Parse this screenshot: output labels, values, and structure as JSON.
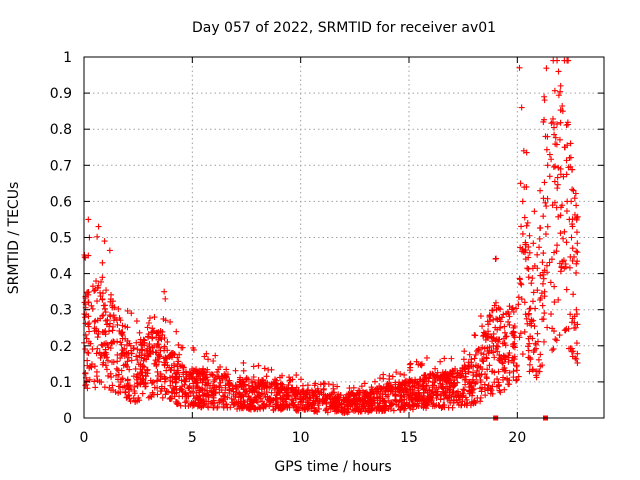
{
  "chart_data": {
    "type": "scatter",
    "title": "Day 057 of 2022, SRMTID for receiver av01",
    "xlabel": "GPS time / hours",
    "ylabel": "SRMTID / TECUs",
    "xlim": [
      0,
      24
    ],
    "ylim": [
      0,
      1
    ],
    "x_ticks": [
      "0",
      "5",
      "10",
      "15",
      "20"
    ],
    "x_tick_values": [
      0,
      5,
      10,
      15,
      20
    ],
    "y_ticks": [
      "0",
      "0.1",
      "0.2",
      "0.3",
      "0.4",
      "0.5",
      "0.6",
      "0.7",
      "0.8",
      "0.9",
      "1"
    ],
    "y_tick_values": [
      0,
      0.1,
      0.2,
      0.3,
      0.4,
      0.5,
      0.6,
      0.7,
      0.8,
      0.9,
      1
    ],
    "grid": true,
    "series_color": "#ff0000",
    "marker": "plus",
    "point_density_per_hour": 105,
    "trend_anchors": [
      {
        "x": 0.0,
        "y": 0.2
      },
      {
        "x": 0.5,
        "y": 0.24
      },
      {
        "x": 1.0,
        "y": 0.22
      },
      {
        "x": 1.5,
        "y": 0.19
      },
      {
        "x": 2.0,
        "y": 0.13
      },
      {
        "x": 2.5,
        "y": 0.12
      },
      {
        "x": 3.0,
        "y": 0.16
      },
      {
        "x": 3.5,
        "y": 0.15
      },
      {
        "x": 4.0,
        "y": 0.12
      },
      {
        "x": 4.5,
        "y": 0.09
      },
      {
        "x": 5.0,
        "y": 0.085
      },
      {
        "x": 6.0,
        "y": 0.08
      },
      {
        "x": 7.0,
        "y": 0.07
      },
      {
        "x": 8.0,
        "y": 0.065
      },
      {
        "x": 9.0,
        "y": 0.06
      },
      {
        "x": 10.0,
        "y": 0.05
      },
      {
        "x": 11.0,
        "y": 0.045
      },
      {
        "x": 12.0,
        "y": 0.04
      },
      {
        "x": 13.0,
        "y": 0.045
      },
      {
        "x": 14.0,
        "y": 0.055
      },
      {
        "x": 15.0,
        "y": 0.065
      },
      {
        "x": 16.0,
        "y": 0.075
      },
      {
        "x": 17.0,
        "y": 0.08
      },
      {
        "x": 18.0,
        "y": 0.1
      },
      {
        "x": 18.5,
        "y": 0.15
      },
      {
        "x": 19.0,
        "y": 0.2
      },
      {
        "x": 19.5,
        "y": 0.18
      },
      {
        "x": 20.0,
        "y": 0.2
      },
      {
        "x": 20.3,
        "y": 0.45
      },
      {
        "x": 20.7,
        "y": 0.25
      },
      {
        "x": 21.0,
        "y": 0.3
      },
      {
        "x": 21.3,
        "y": 0.45
      },
      {
        "x": 21.7,
        "y": 0.55
      },
      {
        "x": 22.0,
        "y": 0.6
      },
      {
        "x": 22.5,
        "y": 0.45
      },
      {
        "x": 22.8,
        "y": 0.35
      }
    ],
    "outliers": [
      {
        "x": 0.2,
        "y": 0.55
      },
      {
        "x": 0.25,
        "y": 0.5
      },
      {
        "x": 0.2,
        "y": 0.45
      },
      {
        "x": 0.95,
        "y": 0.49
      },
      {
        "x": 0.85,
        "y": 0.43
      },
      {
        "x": 3.7,
        "y": 0.35
      },
      {
        "x": 3.75,
        "y": 0.33
      },
      {
        "x": 20.1,
        "y": 0.97
      },
      {
        "x": 20.2,
        "y": 0.86
      },
      {
        "x": 20.3,
        "y": 0.74
      },
      {
        "x": 20.15,
        "y": 0.65
      },
      {
        "x": 20.25,
        "y": 0.6
      },
      {
        "x": 20.4,
        "y": 0.48
      },
      {
        "x": 21.2,
        "y": 0.82
      },
      {
        "x": 21.3,
        "y": 0.78
      },
      {
        "x": 21.4,
        "y": 0.7
      },
      {
        "x": 21.9,
        "y": 0.96
      },
      {
        "x": 22.0,
        "y": 0.92
      },
      {
        "x": 22.1,
        "y": 0.85
      },
      {
        "x": 22.2,
        "y": 0.75
      },
      {
        "x": 22.0,
        "y": 0.69
      },
      {
        "x": 22.3,
        "y": 0.6
      },
      {
        "x": 22.4,
        "y": 0.55
      },
      {
        "x": 22.5,
        "y": 0.5
      }
    ],
    "baseline_squares": [
      {
        "x": 19.0,
        "y": 0.0
      },
      {
        "x": 21.3,
        "y": 0.0
      }
    ]
  }
}
